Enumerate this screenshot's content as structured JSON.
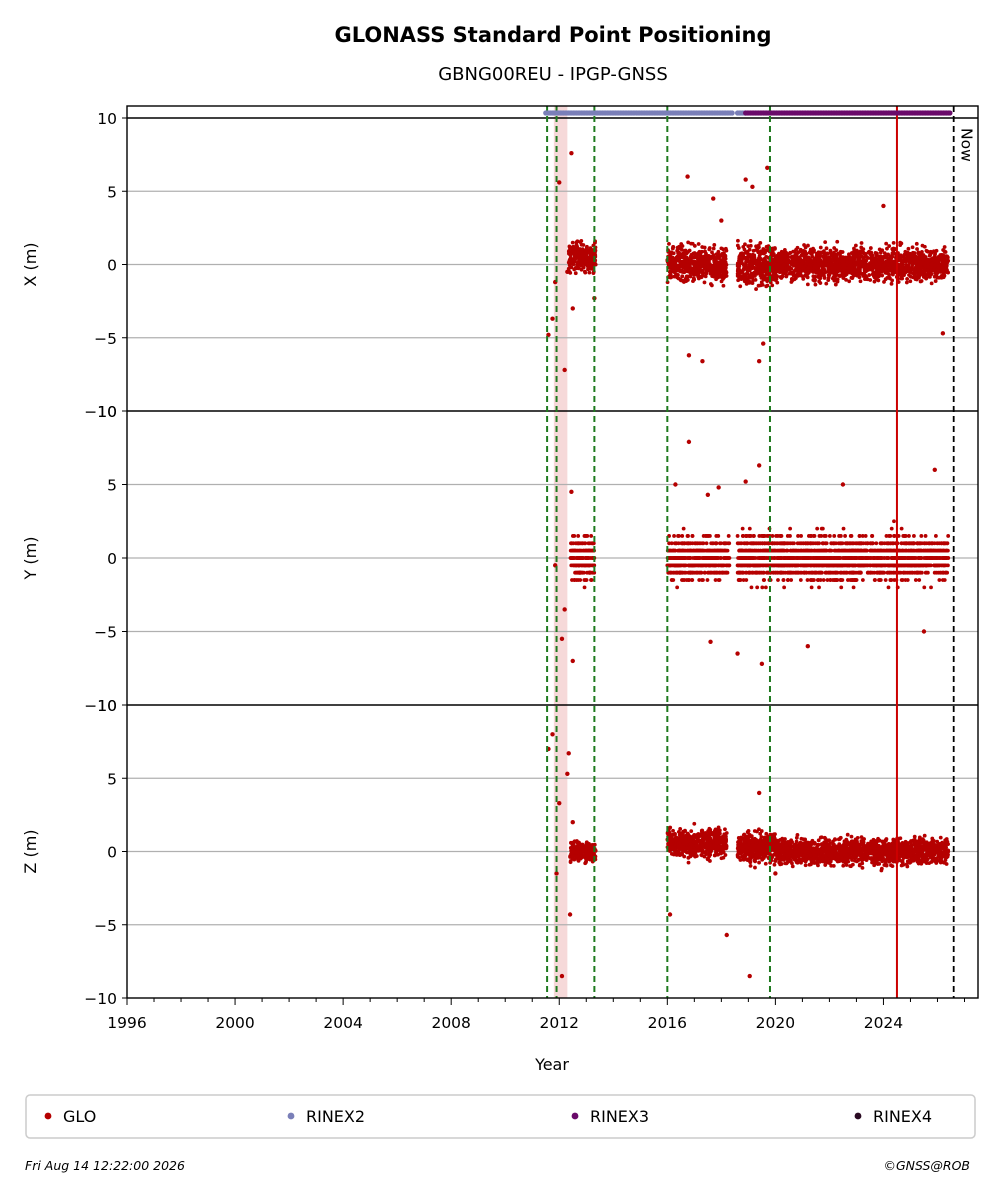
{
  "chart_data": {
    "type": "scatter",
    "title": "GLONASS Standard Point Positioning",
    "subtitle": "GBNG00REU - IPGP-GNSS",
    "xlabel": "Year",
    "xlim": [
      1996,
      2027.5
    ],
    "x_ticks": [
      1996,
      2000,
      2004,
      2008,
      2012,
      2016,
      2020,
      2024
    ],
    "panels": [
      {
        "ylabel": "X (m)",
        "ylim": [
          -10,
          10
        ],
        "y_ticks": [
          10,
          5,
          0,
          -5,
          -10
        ],
        "outliers": [
          [
            2011.6,
            -4.8
          ],
          [
            2011.75,
            -3.7
          ],
          [
            2011.85,
            -1.2
          ],
          [
            2012.0,
            5.6
          ],
          [
            2012.2,
            -7.2
          ],
          [
            2012.45,
            7.6
          ],
          [
            2012.5,
            -3.0
          ],
          [
            2012.3,
            -0.5
          ],
          [
            2013.3,
            -2.3
          ],
          [
            2016.3,
            -0.3
          ],
          [
            2016.75,
            6.0
          ],
          [
            2016.8,
            -6.2
          ],
          [
            2017.3,
            -6.6
          ],
          [
            2017.7,
            4.5
          ],
          [
            2018.0,
            3.0
          ],
          [
            2018.9,
            5.8
          ],
          [
            2019.15,
            5.3
          ],
          [
            2019.4,
            -6.6
          ],
          [
            2019.7,
            6.6
          ],
          [
            2019.55,
            -5.4
          ],
          [
            2024.0,
            4.0
          ],
          [
            2026.2,
            -4.7
          ]
        ],
        "clusters": [
          {
            "from": 2012.35,
            "to": 2013.35,
            "center": 0.5,
            "spread": 2.0
          },
          {
            "from": 2016.0,
            "to": 2018.2,
            "center": 0.0,
            "spread": 2.4
          },
          {
            "from": 2018.6,
            "to": 2020.0,
            "center": 0.0,
            "spread": 3.0
          },
          {
            "from": 2020.0,
            "to": 2026.4,
            "center": 0.0,
            "spread": 2.2
          }
        ]
      },
      {
        "ylabel": "Y (m)",
        "ylim": [
          -10,
          10
        ],
        "y_ticks": [
          10,
          5,
          0,
          -5,
          -10
        ],
        "outliers": [
          [
            2011.85,
            -0.5
          ],
          [
            2012.1,
            -5.5
          ],
          [
            2012.2,
            -3.5
          ],
          [
            2012.45,
            4.5
          ],
          [
            2012.5,
            -7.0
          ],
          [
            2016.3,
            5.0
          ],
          [
            2016.8,
            7.9
          ],
          [
            2017.5,
            4.3
          ],
          [
            2017.9,
            4.8
          ],
          [
            2017.6,
            -5.7
          ],
          [
            2018.6,
            -6.5
          ],
          [
            2018.9,
            5.2
          ],
          [
            2019.4,
            6.3
          ],
          [
            2019.5,
            -7.2
          ],
          [
            2021.2,
            -6.0
          ],
          [
            2022.5,
            5.0
          ],
          [
            2025.5,
            -5.0
          ],
          [
            2025.9,
            6.0
          ]
        ],
        "clusters": [
          {
            "from": 2012.4,
            "to": 2013.3,
            "center": 0.0,
            "spread": 3.0
          },
          {
            "from": 2016.0,
            "to": 2018.3,
            "center": 0.0,
            "spread": 3.0
          },
          {
            "from": 2018.6,
            "to": 2026.4,
            "center": 0.0,
            "spread": 3.2
          }
        ]
      },
      {
        "ylabel": "Z (m)",
        "ylim": [
          -10,
          10
        ],
        "y_ticks": [
          10,
          5,
          0,
          -5,
          -10
        ],
        "outliers": [
          [
            2011.6,
            7.0
          ],
          [
            2011.75,
            8.0
          ],
          [
            2011.9,
            -1.5
          ],
          [
            2012.0,
            3.3
          ],
          [
            2012.1,
            -8.5
          ],
          [
            2012.3,
            5.3
          ],
          [
            2012.35,
            6.7
          ],
          [
            2012.4,
            -4.3
          ],
          [
            2012.5,
            2.0
          ],
          [
            2016.1,
            -4.3
          ],
          [
            2017.5,
            -0.5
          ],
          [
            2017.95,
            -10.4
          ],
          [
            2018.2,
            -5.7
          ],
          [
            2019.05,
            -8.5
          ],
          [
            2019.4,
            4.0
          ],
          [
            2020.0,
            -1.5
          ]
        ],
        "clusters": [
          {
            "from": 2012.4,
            "to": 2013.35,
            "center": 0.0,
            "spread": 1.3
          },
          {
            "from": 2016.0,
            "to": 2018.2,
            "center": 0.6,
            "spread": 2.0
          },
          {
            "from": 2018.6,
            "to": 2020.0,
            "center": 0.3,
            "spread": 2.2
          },
          {
            "from": 2020.0,
            "to": 2026.4,
            "center": 0.0,
            "spread": 1.8
          }
        ]
      }
    ],
    "green_dashed_lines": [
      2011.55,
      2011.9,
      2013.3,
      2016.0,
      2019.8
    ],
    "red_line": 2024.5,
    "now_line": 2026.6,
    "now_label": "Now",
    "shaded_span": [
      2011.8,
      2012.3
    ],
    "rinex_bar": [
      {
        "name": "RINEX2",
        "from": 2011.5,
        "to": 2018.4
      },
      {
        "name": "RINEX2",
        "from": 2018.6,
        "to": 2018.9
      },
      {
        "name": "RINEX3",
        "from": 2018.9,
        "to": 2026.5
      }
    ],
    "legend": [
      {
        "label": "GLO",
        "color": "#b50000"
      },
      {
        "label": "RINEX2",
        "color": "#7a7fb8"
      },
      {
        "label": "RINEX3",
        "color": "#6a0a6a"
      },
      {
        "label": "RINEX4",
        "color": "#2a0a22"
      }
    ],
    "colors": {
      "points": "#b50000",
      "green": "#1e7a1e",
      "red": "#cc0000",
      "shade": "#f6d9d9"
    }
  },
  "footer": {
    "timestamp": "Fri Aug 14 12:22:00 2026",
    "credit": "©GNSS@ROB"
  }
}
